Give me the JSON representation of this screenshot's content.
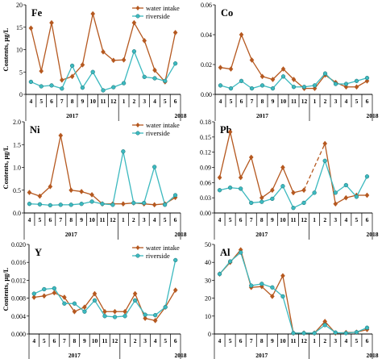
{
  "colors": {
    "water_intake": "#b5581f",
    "riverside": "#3cb9bf",
    "axis": "#000000"
  },
  "ylabel": "Contents, μg/L",
  "chart_data": [
    {
      "type": "line",
      "element": "Fe",
      "categories": [
        "4",
        "5",
        "6",
        "7",
        "8",
        "9",
        "10",
        "11",
        "12",
        "1",
        "2",
        "3",
        "4",
        "5",
        "6"
      ],
      "year_labels": [
        "2017",
        "2018"
      ],
      "ylim": [
        0,
        20
      ],
      "yticks": [
        "0",
        "5",
        "10",
        "15",
        "20"
      ],
      "legend": true,
      "series": [
        {
          "name": "water intake",
          "values": [
            14.8,
            5.2,
            16.0,
            3.2,
            4.0,
            6.6,
            18.0,
            9.5,
            7.6,
            7.7,
            16.0,
            12.0,
            5.4,
            2.8,
            13.8
          ]
        },
        {
          "name": "riverside",
          "values": [
            2.8,
            1.8,
            2.0,
            1.3,
            6.4,
            1.5,
            5.0,
            0.9,
            1.6,
            2.5,
            9.6,
            3.9,
            3.6,
            3.0,
            6.9
          ]
        }
      ]
    },
    {
      "type": "line",
      "element": "Co",
      "categories": [
        "4",
        "5",
        "6",
        "7",
        "8",
        "9",
        "10",
        "11",
        "12",
        "1",
        "2",
        "3",
        "4",
        "5",
        "6"
      ],
      "year_labels": [
        "2017",
        "2018"
      ],
      "ylim": [
        0,
        0.06
      ],
      "yticks": [
        "0.00",
        "0.02",
        "0.04",
        "0.06"
      ],
      "legend": false,
      "series": [
        {
          "name": "water intake",
          "values": [
            0.018,
            0.017,
            0.04,
            0.023,
            0.012,
            0.01,
            0.017,
            0.01,
            0.004,
            0.004,
            0.013,
            0.008,
            0.005,
            0.005,
            0.009
          ]
        },
        {
          "name": "riverside",
          "values": [
            0.006,
            0.004,
            0.009,
            0.004,
            0.006,
            0.004,
            0.012,
            0.005,
            0.005,
            0.006,
            0.014,
            0.007,
            0.007,
            0.009,
            0.011
          ]
        }
      ]
    },
    {
      "type": "line",
      "element": "Ni",
      "categories": [
        "4",
        "5",
        "6",
        "7",
        "8",
        "9",
        "10",
        "11",
        "12",
        "1",
        "2",
        "3",
        "4",
        "5",
        "6"
      ],
      "year_labels": [
        "2017",
        "2018"
      ],
      "ylim": [
        0,
        2.0
      ],
      "yticks": [
        "0.0",
        "0.5",
        "1.0",
        "1.5",
        "2.0"
      ],
      "legend": true,
      "series": [
        {
          "name": "water intake",
          "values": [
            0.45,
            0.37,
            0.58,
            1.7,
            0.5,
            0.47,
            0.4,
            0.2,
            0.2,
            0.2,
            0.22,
            0.2,
            0.18,
            0.2,
            0.34
          ]
        },
        {
          "name": "riverside",
          "values": [
            0.2,
            0.19,
            0.17,
            0.18,
            0.18,
            0.2,
            0.25,
            0.2,
            0.18,
            1.35,
            0.22,
            0.22,
            1.01,
            0.18,
            0.39
          ]
        }
      ]
    },
    {
      "type": "line",
      "element": "Pb",
      "categories": [
        "4",
        "5",
        "6",
        "7",
        "8",
        "9",
        "10",
        "11",
        "12",
        "1",
        "2",
        "3",
        "4",
        "5",
        "6"
      ],
      "year_labels": [
        "2017",
        "2018"
      ],
      "ylim": [
        0,
        0.18
      ],
      "yticks": [
        "0.00",
        "0.03",
        "0.06",
        "0.09",
        "0.12",
        "0.15",
        "0.18"
      ],
      "legend": false,
      "series": [
        {
          "name": "water intake",
          "values": [
            0.07,
            0.16,
            0.07,
            0.11,
            0.03,
            0.045,
            0.09,
            0.04,
            0.045,
            null,
            0.137,
            0.018,
            0.03,
            0.035,
            0.035
          ],
          "dashed_segment": [
            8,
            10
          ]
        },
        {
          "name": "riverside",
          "values": [
            0.045,
            0.05,
            0.048,
            0.02,
            0.022,
            0.028,
            0.053,
            0.01,
            0.02,
            0.04,
            0.103,
            0.04,
            0.055,
            0.032,
            0.072
          ]
        }
      ]
    },
    {
      "type": "line",
      "element": "Y",
      "categories": [
        "4",
        "5",
        "6",
        "7",
        "8",
        "9",
        "10",
        "11",
        "12",
        "1",
        "2",
        "3",
        "4",
        "5",
        "6"
      ],
      "year_labels": [
        "2017",
        "2018"
      ],
      "ylim": [
        0,
        0.02
      ],
      "yticks": [
        "0.000",
        "0.004",
        "0.008",
        "0.012",
        "0.016",
        "0.020"
      ],
      "legend": true,
      "series": [
        {
          "name": "water intake",
          "values": [
            0.0082,
            0.0085,
            0.0092,
            0.0082,
            0.005,
            0.006,
            0.009,
            0.005,
            0.005,
            0.005,
            0.009,
            0.0035,
            0.003,
            0.006,
            0.0098
          ]
        },
        {
          "name": "riverside",
          "values": [
            0.009,
            0.01,
            0.0102,
            0.0068,
            0.0068,
            0.005,
            0.0075,
            0.004,
            0.0038,
            0.004,
            0.0075,
            0.0043,
            0.0042,
            0.006,
            0.0165
          ]
        }
      ]
    },
    {
      "type": "line",
      "element": "Al",
      "categories": [
        "4",
        "5",
        "6",
        "7",
        "8",
        "9",
        "10",
        "11",
        "12",
        "1",
        "2",
        "3",
        "4",
        "5",
        "6"
      ],
      "year_labels": [
        "2017",
        "2018"
      ],
      "ylim": [
        0,
        50
      ],
      "yticks": [
        "0",
        "10",
        "20",
        "30",
        "40",
        "50"
      ],
      "legend": false,
      "series": [
        {
          "name": "water intake",
          "values": [
            33.5,
            40.0,
            47.0,
            26.0,
            26.5,
            21.0,
            32.5,
            0.5,
            0.5,
            0.5,
            7.0,
            0.5,
            0.8,
            1.0,
            2.5
          ]
        },
        {
          "name": "riverside",
          "values": [
            33.5,
            40.5,
            45.5,
            27.0,
            28.0,
            26.0,
            21.0,
            0.5,
            0.5,
            0.5,
            5.0,
            0.8,
            0.5,
            1.0,
            3.5
          ]
        }
      ]
    }
  ]
}
